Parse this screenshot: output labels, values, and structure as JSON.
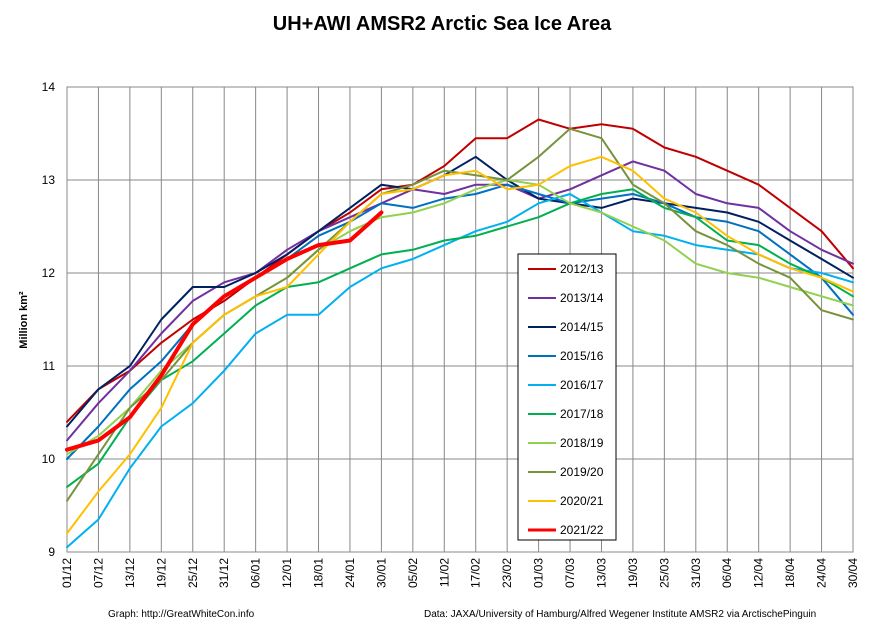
{
  "chart_data": {
    "type": "line",
    "title": "UH+AWI AMSR2 Arctic Sea Ice Area",
    "ylabel": "Million km²",
    "xlabel": "",
    "ylim": [
      9,
      14
    ],
    "yticks": [
      "9",
      "10",
      "11",
      "12",
      "13",
      "14"
    ],
    "grid": true,
    "legend_position": "right-center",
    "xticks": [
      "01/12",
      "07/12",
      "13/12",
      "19/12",
      "25/12",
      "31/12",
      "06/01",
      "12/01",
      "18/01",
      "24/01",
      "30/01",
      "05/02",
      "11/02",
      "17/02",
      "23/02",
      "01/03",
      "07/03",
      "13/03",
      "19/03",
      "25/03",
      "31/03",
      "06/04",
      "12/04",
      "18/04",
      "24/04",
      "30/04"
    ],
    "series": [
      {
        "name": "2012/13",
        "color": "#c00000",
        "width": 2,
        "values": [
          10.4,
          10.75,
          10.95,
          11.25,
          11.5,
          11.7,
          11.95,
          12.2,
          12.45,
          12.65,
          12.9,
          12.95,
          13.15,
          13.45,
          13.45,
          13.65,
          13.55,
          13.6,
          13.55,
          13.35,
          13.25,
          13.1,
          12.95,
          12.7,
          12.45,
          12.05
        ]
      },
      {
        "name": "2013/14",
        "color": "#7030a0",
        "width": 2,
        "values": [
          10.2,
          10.6,
          10.95,
          11.35,
          11.7,
          11.9,
          12.0,
          12.25,
          12.45,
          12.6,
          12.75,
          12.9,
          12.85,
          12.95,
          12.95,
          12.8,
          12.9,
          13.05,
          13.2,
          13.1,
          12.85,
          12.75,
          12.7,
          12.45,
          12.25,
          12.1
        ]
      },
      {
        "name": "2014/15",
        "color": "#002060",
        "width": 2,
        "values": [
          10.35,
          10.75,
          11.0,
          11.5,
          11.85,
          11.85,
          12.0,
          12.2,
          12.45,
          12.7,
          12.95,
          12.9,
          13.05,
          13.25,
          13.0,
          12.8,
          12.75,
          12.7,
          12.8,
          12.75,
          12.7,
          12.65,
          12.55,
          12.35,
          12.15,
          11.95
        ]
      },
      {
        "name": "2015/16",
        "color": "#0070c0",
        "width": 2,
        "values": [
          10.0,
          10.35,
          10.75,
          11.05,
          11.45,
          11.75,
          11.95,
          12.15,
          12.4,
          12.55,
          12.75,
          12.7,
          12.8,
          12.85,
          12.95,
          12.85,
          12.75,
          12.8,
          12.85,
          12.75,
          12.6,
          12.55,
          12.45,
          12.2,
          11.95,
          11.55
        ]
      },
      {
        "name": "2016/17",
        "color": "#00b0f0",
        "width": 2,
        "values": [
          9.05,
          9.35,
          9.9,
          10.35,
          10.6,
          10.95,
          11.35,
          11.55,
          11.55,
          11.85,
          12.05,
          12.15,
          12.3,
          12.45,
          12.55,
          12.75,
          12.85,
          12.65,
          12.45,
          12.4,
          12.3,
          12.25,
          12.2,
          12.05,
          12.0,
          11.9
        ]
      },
      {
        "name": "2017/18",
        "color": "#00b050",
        "width": 2,
        "values": [
          9.7,
          9.95,
          10.45,
          10.85,
          11.05,
          11.35,
          11.65,
          11.85,
          11.9,
          12.05,
          12.2,
          12.25,
          12.35,
          12.4,
          12.5,
          12.6,
          12.75,
          12.85,
          12.9,
          12.7,
          12.6,
          12.35,
          12.3,
          12.1,
          11.95,
          11.75
        ]
      },
      {
        "name": "2018/19",
        "color": "#92d050",
        "width": 2,
        "values": [
          10.05,
          10.25,
          10.55,
          10.95,
          11.25,
          11.55,
          11.75,
          11.95,
          12.25,
          12.45,
          12.6,
          12.65,
          12.75,
          12.9,
          13.0,
          12.95,
          12.75,
          12.65,
          12.5,
          12.35,
          12.1,
          12.0,
          11.95,
          11.85,
          11.75,
          11.65
        ]
      },
      {
        "name": "2019/20",
        "color": "#77933c",
        "width": 2,
        "values": [
          9.55,
          10.05,
          10.55,
          10.85,
          11.25,
          11.55,
          11.75,
          11.95,
          12.25,
          12.55,
          12.85,
          12.95,
          13.1,
          13.05,
          13.0,
          13.25,
          13.55,
          13.45,
          12.95,
          12.75,
          12.45,
          12.3,
          12.1,
          11.95,
          11.6,
          11.5
        ]
      },
      {
        "name": "2020/21",
        "color": "#ffc000",
        "width": 2,
        "values": [
          9.2,
          9.65,
          10.05,
          10.55,
          11.25,
          11.55,
          11.75,
          11.85,
          12.2,
          12.55,
          12.85,
          12.9,
          13.05,
          13.1,
          12.9,
          12.95,
          13.15,
          13.25,
          13.1,
          12.8,
          12.65,
          12.4,
          12.2,
          12.05,
          11.95,
          11.8
        ]
      },
      {
        "name": "2021/22",
        "color": "#ff0000",
        "width": 4,
        "values": [
          10.1,
          10.2,
          10.45,
          10.9,
          11.45,
          11.75,
          11.95,
          12.15,
          12.3,
          12.35,
          12.65
        ]
      }
    ]
  },
  "footer": {
    "left": "Graph: http://GreatWhiteCon.info",
    "right": "Data: JAXA/University of Hamburg/Alfred Wegener Institute  AMSR2 via  ArctischePinguin"
  }
}
